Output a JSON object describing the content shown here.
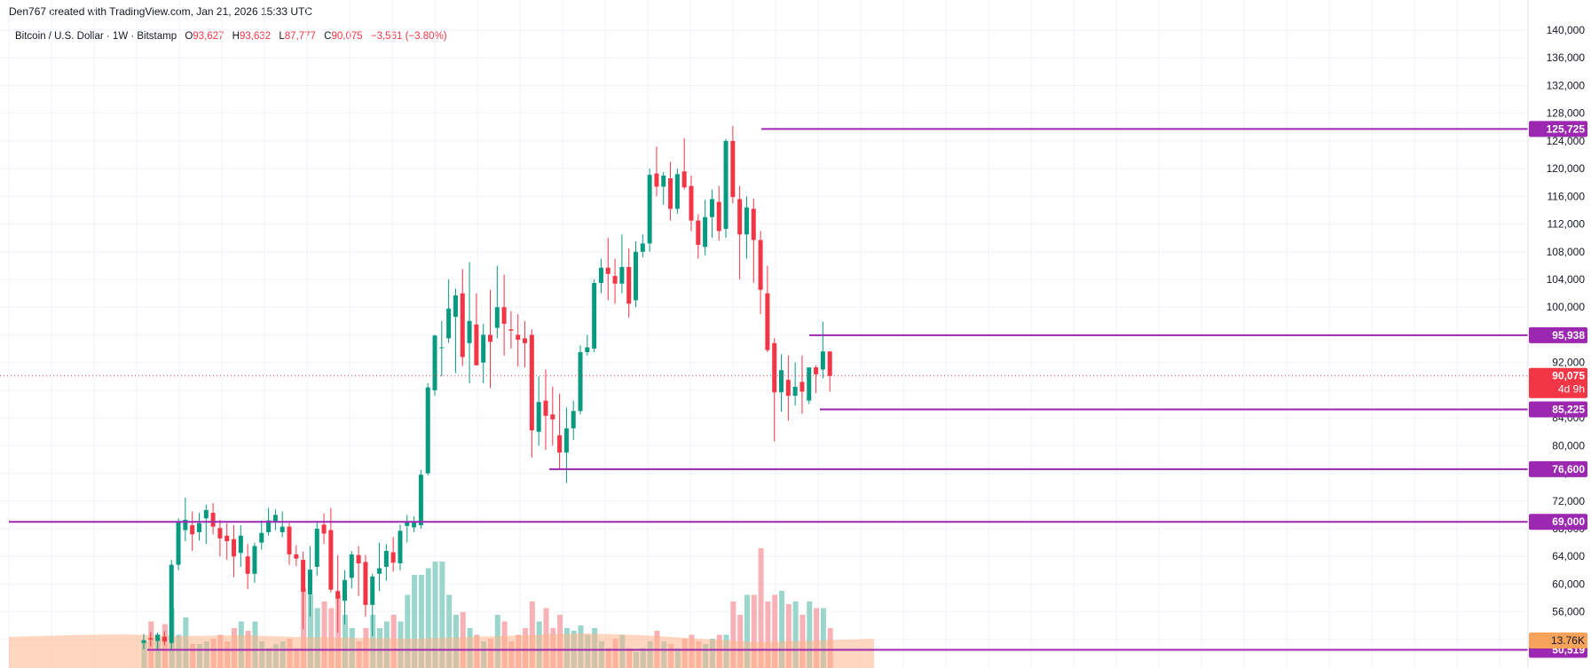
{
  "header": {
    "text": "Den767 created with TradingView.com, Jan 21, 2026 15:33 UTC"
  },
  "legend": {
    "symbol": "Bitcoin / U.S. Dollar · 1W · Bitstamp",
    "open_label": "O",
    "open": "93,627",
    "high_label": "H",
    "high": "93,632",
    "low_label": "L",
    "low": "87,777",
    "close_label": "C",
    "close": "90,075",
    "change": "−3,561 (−3.80%)"
  },
  "colors": {
    "up": "#089981",
    "down": "#f23645",
    "level": "#9c27b0",
    "grid": "#f0f3fa",
    "volume_ma": "#ffb58a"
  },
  "current_price": {
    "value": "90,075",
    "countdown": "4d 9h"
  },
  "volume_label": "13.76K",
  "levels": [
    {
      "value": 125725,
      "label": "125,725"
    },
    {
      "value": 95938,
      "label": "95,938"
    },
    {
      "value": 85225,
      "label": "85,225"
    },
    {
      "value": 76600,
      "label": "76,600"
    },
    {
      "value": 69000,
      "label": "69,000"
    },
    {
      "value": 50519,
      "label": "50,519"
    }
  ],
  "chart_data": {
    "type": "candlestick",
    "title": "Bitcoin / U.S. Dollar · 1W · Bitstamp",
    "y_ticks": [
      140000,
      136000,
      132000,
      128000,
      124000,
      120000,
      116000,
      112000,
      108000,
      104000,
      100000,
      96000,
      92000,
      88000,
      84000,
      80000,
      76000,
      72000,
      68000,
      64000,
      60000,
      56000,
      52000
    ],
    "y_tick_labels": [
      "140,000",
      "136,000",
      "132,000",
      "128,000",
      "124,000",
      "120,000",
      "116,000",
      "112,000",
      "108,000",
      "104,000",
      "100,000",
      "96,000",
      "92,000",
      "88,000",
      "84,000",
      "80,000",
      "76,000",
      "72,000",
      "68,000",
      "64,000",
      "60,000",
      "56,000",
      "52,000"
    ],
    "ylim": [
      50000,
      141500
    ],
    "grid": true,
    "candles": [
      [
        51500,
        52800,
        50600,
        51900
      ],
      [
        52200,
        53100,
        51000,
        52000
      ],
      [
        51800,
        53000,
        50600,
        52700
      ],
      [
        52400,
        53200,
        51200,
        51700
      ],
      [
        51500,
        63500,
        50600,
        62800
      ],
      [
        62800,
        69500,
        62000,
        68900
      ],
      [
        67800,
        72500,
        66200,
        69300
      ],
      [
        68500,
        70500,
        64800,
        67200
      ],
      [
        67500,
        70300,
        66300,
        68800
      ],
      [
        69500,
        71500,
        65800,
        70700
      ],
      [
        70300,
        71700,
        67200,
        68300
      ],
      [
        68100,
        69300,
        64000,
        66600
      ],
      [
        67000,
        68800,
        63500,
        66200
      ],
      [
        66500,
        68500,
        61000,
        64000
      ],
      [
        64500,
        68500,
        62500,
        67000
      ],
      [
        64000,
        65800,
        59300,
        61500
      ],
      [
        61500,
        66000,
        60200,
        65500
      ],
      [
        66000,
        69200,
        65000,
        67400
      ],
      [
        67500,
        71000,
        67000,
        69200
      ],
      [
        69000,
        70800,
        67800,
        70000
      ],
      [
        67500,
        70500,
        66800,
        68300
      ],
      [
        68300,
        68800,
        62800,
        64300
      ],
      [
        64300,
        65600,
        62600,
        63700
      ],
      [
        63500,
        64700,
        53500,
        58900
      ],
      [
        58500,
        65500,
        55300,
        62100
      ],
      [
        62500,
        69000,
        61200,
        68000
      ],
      [
        68600,
        70200,
        65800,
        67300
      ],
      [
        67800,
        71000,
        58800,
        59200
      ],
      [
        59000,
        64200,
        53000,
        57900
      ],
      [
        57600,
        62000,
        54200,
        60600
      ],
      [
        60900,
        64800,
        59400,
        64300
      ],
      [
        64200,
        65500,
        58300,
        63000
      ],
      [
        63200,
        64200,
        55300,
        57000
      ],
      [
        57000,
        61500,
        52500,
        61100
      ],
      [
        61500,
        66000,
        59000,
        62300
      ],
      [
        62500,
        65800,
        60500,
        64800
      ],
      [
        64600,
        66800,
        61800,
        63100
      ],
      [
        63000,
        68600,
        62000,
        67700
      ],
      [
        68400,
        70000,
        66000,
        69000
      ],
      [
        68200,
        69800,
        67500,
        68900
      ],
      [
        68500,
        76500,
        68000,
        75800
      ],
      [
        76000,
        89000,
        75700,
        88400
      ],
      [
        88000,
        96000,
        87200,
        95900
      ],
      [
        94200,
        98000,
        90000,
        94200
      ],
      [
        95500,
        104000,
        94800,
        99800
      ],
      [
        98600,
        102700,
        90500,
        101700
      ],
      [
        102000,
        105500,
        91500,
        92800
      ],
      [
        94800,
        106500,
        89000,
        98000
      ],
      [
        97500,
        102000,
        92000,
        91600
      ],
      [
        92000,
        97600,
        89000,
        96000
      ],
      [
        96000,
        102500,
        88300,
        95000
      ],
      [
        97000,
        106000,
        95500,
        100000
      ],
      [
        100000,
        104700,
        93000,
        97600
      ],
      [
        96800,
        99400,
        94000,
        96600
      ],
      [
        96000,
        99000,
        91400,
        95300
      ],
      [
        95500,
        98000,
        91300,
        94800
      ],
      [
        96000,
        96800,
        78300,
        82200
      ],
      [
        82000,
        90000,
        80000,
        86300
      ],
      [
        86500,
        91000,
        79400,
        84300
      ],
      [
        84500,
        88500,
        80000,
        83800
      ],
      [
        81500,
        87500,
        76600,
        79000
      ],
      [
        79000,
        85500,
        74600,
        82500
      ],
      [
        82500,
        86500,
        80800,
        85000
      ],
      [
        85000,
        94500,
        84500,
        93500
      ],
      [
        93500,
        96000,
        93000,
        94200
      ],
      [
        94000,
        104000,
        93500,
        103500
      ],
      [
        103500,
        107000,
        102000,
        105700
      ],
      [
        105700,
        110000,
        101000,
        104800
      ],
      [
        104500,
        107000,
        100500,
        103400
      ],
      [
        103400,
        110500,
        102000,
        105800
      ],
      [
        105800,
        108500,
        98500,
        100500
      ],
      [
        101000,
        109500,
        100000,
        108000
      ],
      [
        108000,
        110500,
        107200,
        109200
      ],
      [
        109200,
        120000,
        108000,
        119100
      ],
      [
        119300,
        123200,
        116000,
        117400
      ],
      [
        117400,
        119500,
        114800,
        119000
      ],
      [
        118600,
        121000,
        112500,
        114200
      ],
      [
        114200,
        120000,
        113500,
        119200
      ],
      [
        119600,
        124400,
        117000,
        117300
      ],
      [
        117500,
        119000,
        111000,
        112500
      ],
      [
        112500,
        113400,
        107000,
        109000
      ],
      [
        108700,
        115500,
        107500,
        113000
      ],
      [
        113000,
        117000,
        110000,
        115600
      ],
      [
        115200,
        117500,
        109600,
        111000
      ],
      [
        111300,
        124300,
        110000,
        124000
      ],
      [
        124000,
        126200,
        115000,
        115900
      ],
      [
        115600,
        117500,
        104000,
        110500
      ],
      [
        110500,
        116000,
        107000,
        114400
      ],
      [
        114200,
        115700,
        103500,
        109700
      ],
      [
        109700,
        111000,
        99000,
        102500
      ],
      [
        102000,
        106000,
        93500,
        93800
      ],
      [
        94800,
        95500,
        80600,
        87700
      ],
      [
        87700,
        93200,
        84900,
        90900
      ],
      [
        89500,
        93000,
        83600,
        87200
      ],
      [
        87200,
        92000,
        85800,
        88500
      ],
      [
        89200,
        93000,
        84600,
        87800
      ],
      [
        86500,
        91000,
        86000,
        91300
      ],
      [
        91300,
        91600,
        87600,
        90300
      ],
      [
        91000,
        97900,
        89700,
        93600
      ],
      [
        93600,
        93632,
        87777,
        90075
      ]
    ],
    "volume_scale_note": "relative volume per weekly bar, 0-1",
    "volumes": [
      0.2,
      0.35,
      0.22,
      0.33,
      0.45,
      0.25,
      0.38,
      0.18,
      0.18,
      0.2,
      0.22,
      0.25,
      0.2,
      0.3,
      0.35,
      0.28,
      0.35,
      0.2,
      0.15,
      0.18,
      0.2,
      0.22,
      0.15,
      0.6,
      0.55,
      0.45,
      0.5,
      0.45,
      0.55,
      0.4,
      0.3,
      0.2,
      0.3,
      0.4,
      0.3,
      0.35,
      0.4,
      0.35,
      0.55,
      0.7,
      0.7,
      0.75,
      0.8,
      0.8,
      0.55,
      0.4,
      0.42,
      0.3,
      0.25,
      0.2,
      0.22,
      0.4,
      0.35,
      0.2,
      0.25,
      0.3,
      0.5,
      0.35,
      0.45,
      0.3,
      0.4,
      0.3,
      0.28,
      0.32,
      0.25,
      0.3,
      0.2,
      0.15,
      0.22,
      0.25,
      0.15,
      0.12,
      0.15,
      0.2,
      0.28,
      0.2,
      0.18,
      0.15,
      0.22,
      0.25,
      0.2,
      0.18,
      0.22,
      0.25,
      0.25,
      0.5,
      0.4,
      0.55,
      0.55,
      0.9,
      0.5,
      0.55,
      0.58,
      0.48,
      0.5,
      0.4,
      0.5,
      0.45,
      0.45,
      0.3
    ]
  }
}
